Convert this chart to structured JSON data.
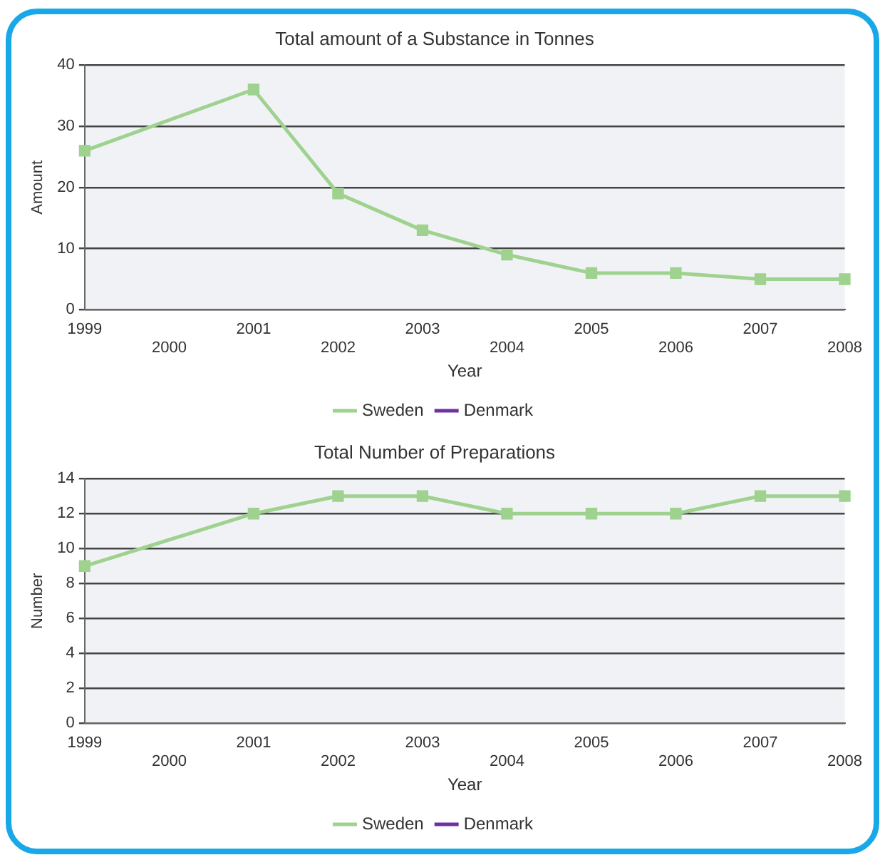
{
  "chart_data": [
    {
      "type": "line",
      "title": "Total amount of a Substance in Tonnes",
      "xlabel": "Year",
      "ylabel": "Amount",
      "categories": [
        "1999",
        "2000",
        "2001",
        "2002",
        "2003",
        "2004",
        "2005",
        "2006",
        "2007",
        "2008"
      ],
      "series": [
        {
          "name": "Sweden",
          "color": "#9ed28e",
          "values": [
            26,
            null,
            36,
            19,
            13,
            9,
            6,
            6,
            5,
            5
          ]
        },
        {
          "name": "Denmark",
          "color": "#7030a0",
          "values": [
            null,
            null,
            null,
            null,
            null,
            null,
            null,
            null,
            null,
            null
          ]
        }
      ],
      "ylim": [
        0,
        40
      ],
      "yticks": [
        0,
        10,
        20,
        30,
        40
      ],
      "grid": "y",
      "legend": "bottom",
      "marker": "square"
    },
    {
      "type": "line",
      "title": "Total Number of Preparations",
      "xlabel": "Year",
      "ylabel": "Number",
      "categories": [
        "1999",
        "2000",
        "2001",
        "2002",
        "2003",
        "2004",
        "2005",
        "2006",
        "2007",
        "2008"
      ],
      "series": [
        {
          "name": "Sweden",
          "color": "#9ed28e",
          "values": [
            9,
            null,
            12,
            13,
            13,
            12,
            12,
            12,
            13,
            13
          ]
        },
        {
          "name": "Denmark",
          "color": "#7030a0",
          "values": [
            null,
            null,
            null,
            null,
            null,
            null,
            null,
            null,
            null,
            null
          ]
        }
      ],
      "ylim": [
        0,
        14
      ],
      "yticks": [
        0,
        2,
        4,
        6,
        8,
        10,
        12,
        14
      ],
      "grid": "y",
      "legend": "bottom",
      "marker": "square"
    }
  ]
}
